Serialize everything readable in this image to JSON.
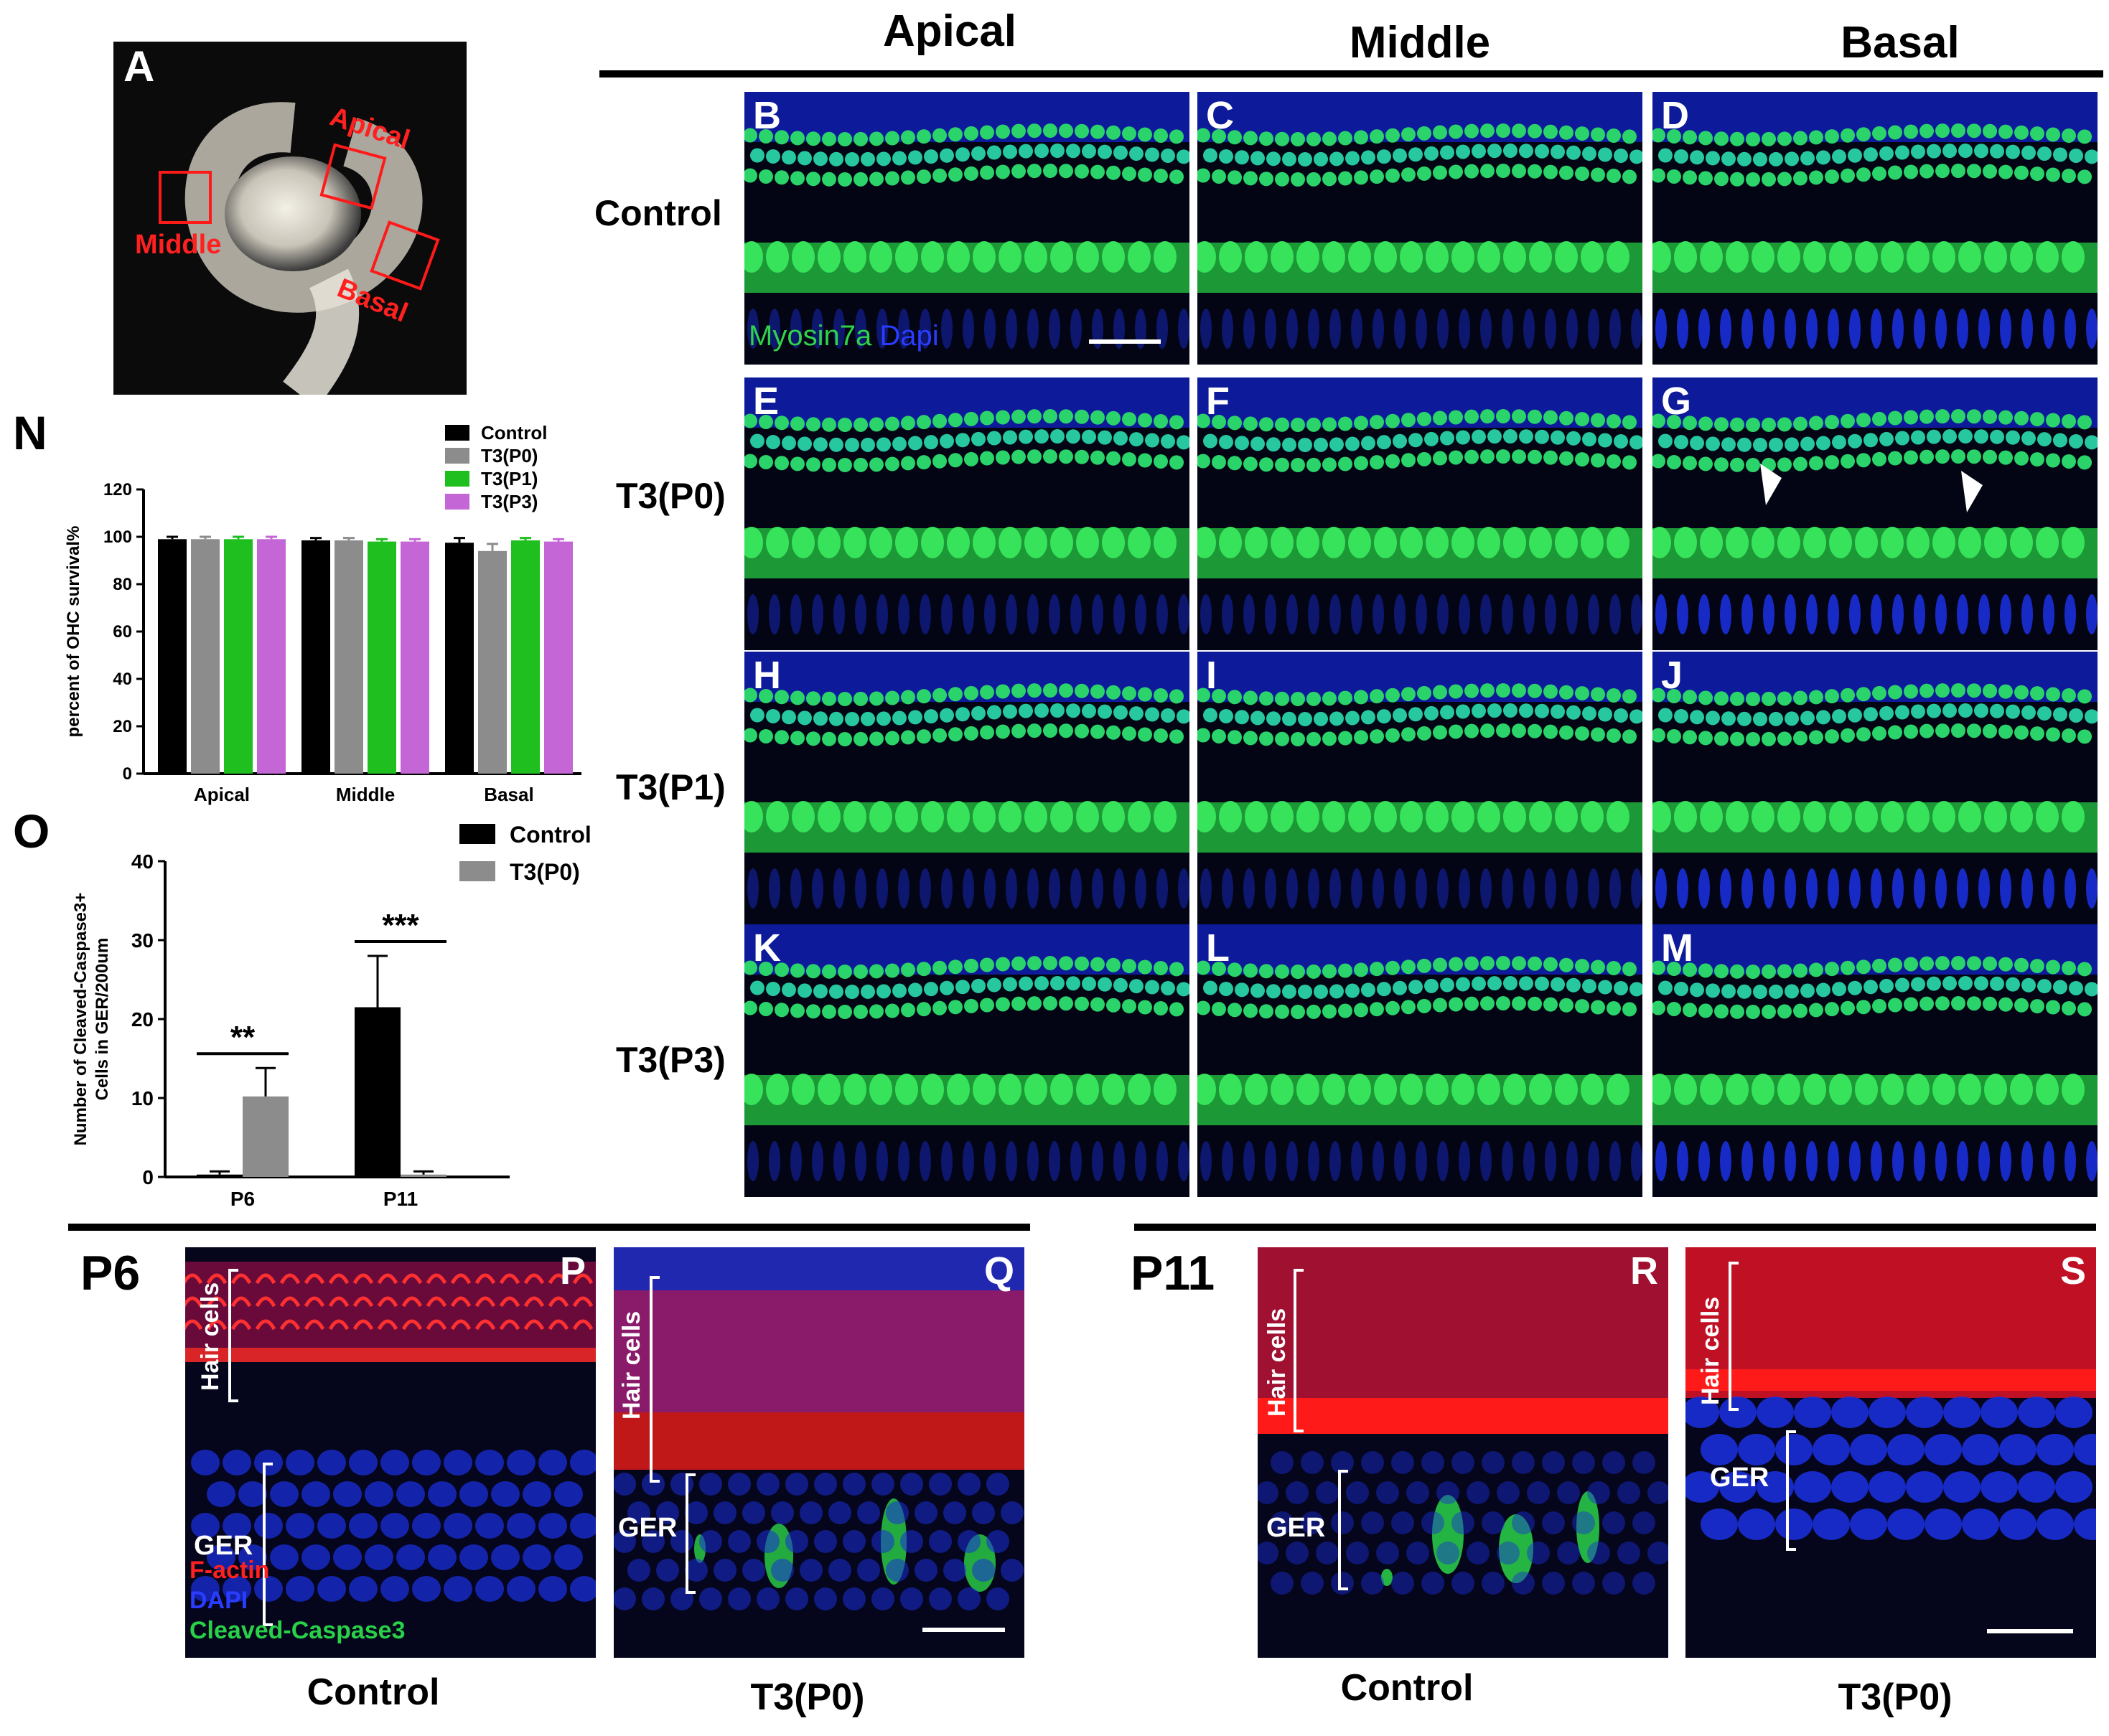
{
  "figure": {
    "column_headers": [
      "Apical",
      "Middle",
      "Basal"
    ],
    "row_labels": [
      "Control",
      "T3(P0)",
      "T3(P1)",
      "T3(P3)"
    ],
    "grid_panel_letters": [
      "B",
      "C",
      "D",
      "E",
      "F",
      "G",
      "H",
      "I",
      "J",
      "K",
      "L",
      "M"
    ],
    "stain_label_1": "Myosin7a",
    "stain_label_2": "Dapi",
    "panel_a": {
      "letter": "A",
      "regions": [
        "Apical",
        "Middle",
        "Basal"
      ]
    },
    "panel_n_letter": "N",
    "panel_o_letter": "O",
    "bottom": {
      "p6_label": "P6",
      "p11_label": "P11",
      "panel_letters": [
        "P",
        "Q",
        "R",
        "S"
      ],
      "hair_cells": "Hair cells",
      "ger": "GER",
      "legend": [
        "F-actin",
        "DAPI",
        "Cleaved-Caspase3"
      ],
      "captions": [
        "Control",
        "T3(P0)",
        "Control",
        "T3(P0)"
      ]
    },
    "colors": {
      "control": "#000000",
      "t3p0": "#8c8c8c",
      "t3p1": "#1fbf1f",
      "t3p3": "#c466d6",
      "myosin_green": "#27d14a",
      "dapi_blue": "#1a2fd9",
      "factin_red": "#ff1a1a"
    }
  },
  "chart_data": [
    {
      "type": "bar",
      "panel": "N",
      "categories": [
        "Apical",
        "Middle",
        "Basal"
      ],
      "series": [
        {
          "name": "Control",
          "values": [
            99,
            98.5,
            97.5
          ],
          "errors": [
            1,
            1,
            2
          ]
        },
        {
          "name": "T3(P0)",
          "values": [
            99,
            98.5,
            94
          ],
          "errors": [
            1,
            1,
            3
          ]
        },
        {
          "name": "T3(P1)",
          "values": [
            99,
            98,
            98.5
          ],
          "errors": [
            1,
            1,
            1
          ]
        },
        {
          "name": "T3(P3)",
          "values": [
            99,
            98,
            98
          ],
          "errors": [
            1,
            1,
            1
          ]
        }
      ],
      "ylabel": "percent of OHC survival%",
      "ylim": [
        0,
        120
      ],
      "yticks": [
        "0",
        "20",
        "40",
        "60",
        "80",
        "100",
        "120"
      ],
      "legend": "top-right"
    },
    {
      "type": "bar",
      "panel": "O",
      "categories": [
        "P6",
        "P11"
      ],
      "series": [
        {
          "name": "Control",
          "values": [
            0.3,
            21.5
          ],
          "errors": [
            0.4,
            6.5
          ]
        },
        {
          "name": "T3(P0)",
          "values": [
            10.2,
            0.3
          ],
          "errors": [
            3.6,
            0.4
          ]
        }
      ],
      "significance": [
        "**",
        "***"
      ],
      "ylabel_line1": "Number of Cleaved-Caspase3+",
      "ylabel_line2": "Cells  in GER/200um",
      "ylim": [
        0,
        40
      ],
      "yticks": [
        "0",
        "10",
        "20",
        "30",
        "40"
      ],
      "legend": "top-right"
    }
  ]
}
